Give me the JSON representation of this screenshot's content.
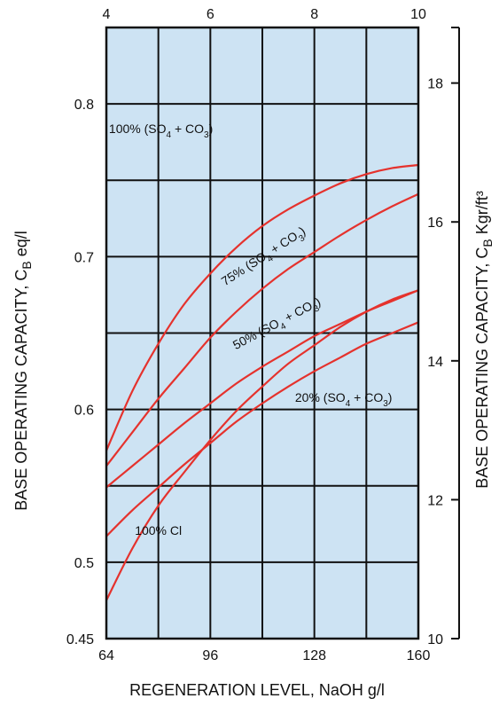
{
  "chart_data": {
    "type": "line",
    "x": {
      "label": "REGENERATION LEVEL, NaOH g/l",
      "ticks": [
        "64",
        "96",
        "128",
        "160"
      ],
      "range": [
        64,
        160
      ]
    },
    "x_top": {
      "ticks": [
        "4",
        "6",
        "8",
        "10"
      ],
      "range": [
        4,
        10
      ]
    },
    "y_left": {
      "label_main": "BASE OPERATING CAPACITY, C",
      "label_sub": "B",
      "label_unit": " eq/l",
      "ticks": [
        "0.45",
        "0.5",
        "0.6",
        "0.7",
        "0.8"
      ],
      "range": [
        0.45,
        0.85
      ]
    },
    "y_right": {
      "label_main": "BASE OPERATING CAPACITY, C",
      "label_sub": "B",
      "label_unit": " Kgr/ft³",
      "ticks": [
        "10",
        "12",
        "14",
        "16",
        "18"
      ],
      "range": [
        10,
        18.8
      ]
    },
    "grid": true,
    "background": "#cde3f3",
    "line_color": "#e5322d",
    "series": [
      {
        "name": "100% (SO4 + CO3)",
        "x": [
          64,
          72,
          80,
          88,
          96,
          104,
          112,
          120,
          128,
          136,
          144,
          152,
          160
        ],
        "y": [
          0.573,
          0.612,
          0.643,
          0.669,
          0.689,
          0.706,
          0.72,
          0.731,
          0.74,
          0.748,
          0.754,
          0.758,
          0.76
        ]
      },
      {
        "name": "75% (SO4 + CO3)",
        "x": [
          64,
          72,
          80,
          88,
          96,
          104,
          112,
          120,
          128,
          136,
          144,
          152,
          160
        ],
        "y": [
          0.563,
          0.585,
          0.607,
          0.627,
          0.647,
          0.664,
          0.679,
          0.692,
          0.703,
          0.714,
          0.724,
          0.733,
          0.741
        ]
      },
      {
        "name": "50% (SO4 + CO3)",
        "x": [
          64,
          72,
          80,
          88,
          96,
          104,
          112,
          120,
          128,
          136,
          144,
          152,
          160
        ],
        "y": [
          0.549,
          0.563,
          0.577,
          0.591,
          0.604,
          0.617,
          0.628,
          0.638,
          0.648,
          0.656,
          0.664,
          0.671,
          0.678
        ]
      },
      {
        "name": "20% (SO4 + CO3)",
        "x": [
          64,
          72,
          80,
          88,
          96,
          104,
          112,
          120,
          128,
          136,
          144,
          152,
          160
        ],
        "y": [
          0.517,
          0.534,
          0.549,
          0.564,
          0.578,
          0.592,
          0.604,
          0.615,
          0.625,
          0.634,
          0.643,
          0.65,
          0.657
        ]
      },
      {
        "name": "100% Cl",
        "x": [
          64,
          72,
          80,
          88,
          96,
          104,
          112,
          120,
          128,
          136,
          144,
          152,
          160
        ],
        "y": [
          0.475,
          0.509,
          0.537,
          0.559,
          0.58,
          0.599,
          0.615,
          0.63,
          0.642,
          0.654,
          0.664,
          0.672,
          0.678
        ]
      }
    ],
    "labels": [
      {
        "series": 0,
        "parts": [
          [
            "100% (SO",
            ""
          ],
          [
            "4",
            "sub"
          ],
          [
            " + CO",
            ""
          ],
          [
            "3",
            "sub"
          ],
          [
            ")",
            ""
          ]
        ],
        "x": 64.8,
        "y": 0.781,
        "angle": 0,
        "anchor": "start"
      },
      {
        "series": 1,
        "parts": [
          [
            "75% (SO",
            ""
          ],
          [
            "4",
            "sub"
          ],
          [
            " + CO",
            ""
          ],
          [
            "3",
            "sub"
          ],
          [
            ")",
            ""
          ]
        ],
        "x": 113,
        "y": 0.698,
        "angle": -33,
        "anchor": "middle"
      },
      {
        "series": 2,
        "parts": [
          [
            "50% (SO",
            ""
          ],
          [
            "4",
            "sub"
          ],
          [
            " + CO",
            ""
          ],
          [
            "3",
            "sub"
          ],
          [
            ")",
            ""
          ]
        ],
        "x": 117,
        "y": 0.654,
        "angle": -28,
        "anchor": "middle"
      },
      {
        "series": 3,
        "parts": [
          [
            "20% (SO",
            ""
          ],
          [
            "4",
            "sub"
          ],
          [
            " + CO",
            ""
          ],
          [
            "3",
            "sub"
          ],
          [
            ")",
            ""
          ]
        ],
        "x": 137,
        "y": 0.605,
        "angle": 0,
        "anchor": "middle"
      },
      {
        "series": 4,
        "parts": [
          [
            "100% Cl",
            ""
          ]
        ],
        "x": 80,
        "y": 0.518,
        "angle": 0,
        "anchor": "middle"
      }
    ]
  }
}
